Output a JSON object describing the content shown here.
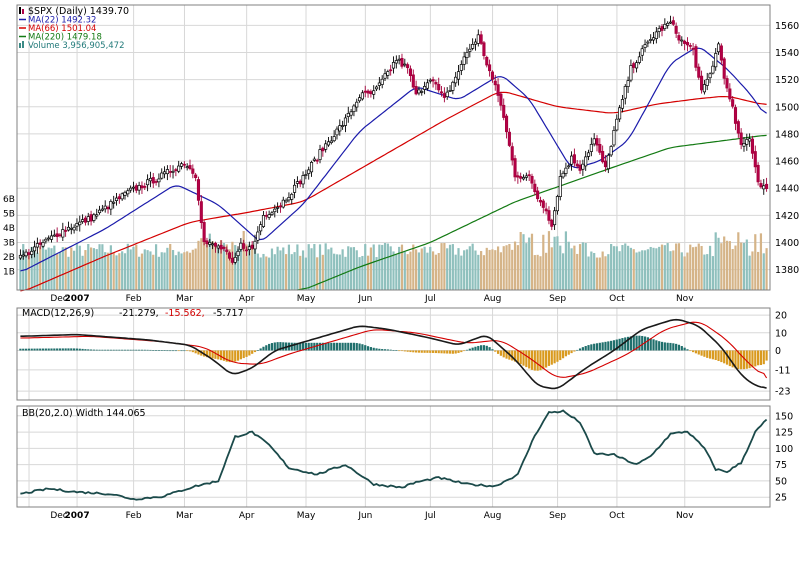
{
  "chart_data": [
    {
      "type": "line",
      "panel": "price",
      "title": "$SPX (Daily) 1439.70",
      "symbol": "$SPX",
      "period": "Daily",
      "last": 1439.7,
      "legend": [
        {
          "label": "$SPX (Daily) 1439.70",
          "color": "#000000",
          "swatch": "candle"
        },
        {
          "label": "MA(22) 1492.32",
          "color": "#1b1bab",
          "swatch": "line"
        },
        {
          "label": "MA(66) 1501.04",
          "color": "#d40000",
          "swatch": "line"
        },
        {
          "label": "MA(220) 1479.18",
          "color": "#137a13",
          "swatch": "line"
        },
        {
          "label": "Volume 3,956,905,472",
          "color": "#227a7a",
          "swatch": "bars"
        }
      ],
      "ylim": [
        1365,
        1575
      ],
      "yticks": [
        1380,
        1400,
        1420,
        1440,
        1460,
        1480,
        1500,
        1520,
        1540,
        1560
      ],
      "x_months": [
        "Dec",
        "2007",
        "Feb",
        "Mar",
        "Apr",
        "May",
        "Jun",
        "Jul",
        "Aug",
        "Sep",
        "Oct",
        "Nov"
      ],
      "volume_ticks": [
        "6B",
        "5B",
        "4B",
        "3B",
        "2B",
        "1B"
      ],
      "close_keypoints": [
        {
          "t": 0,
          "v": 1389
        },
        {
          "t": 15,
          "v": 1409
        },
        {
          "t": 25,
          "v": 1418
        },
        {
          "t": 38,
          "v": 1437
        },
        {
          "t": 50,
          "v": 1449
        },
        {
          "t": 58,
          "v": 1459
        },
        {
          "t": 62,
          "v": 1450
        },
        {
          "t": 65,
          "v": 1400
        },
        {
          "t": 72,
          "v": 1395
        },
        {
          "t": 75,
          "v": 1383
        },
        {
          "t": 78,
          "v": 1398
        },
        {
          "t": 82,
          "v": 1395
        },
        {
          "t": 86,
          "v": 1420
        },
        {
          "t": 92,
          "v": 1428
        },
        {
          "t": 100,
          "v": 1448
        },
        {
          "t": 108,
          "v": 1472
        },
        {
          "t": 115,
          "v": 1490
        },
        {
          "t": 120,
          "v": 1508
        },
        {
          "t": 125,
          "v": 1510
        },
        {
          "t": 130,
          "v": 1525
        },
        {
          "t": 133,
          "v": 1535
        },
        {
          "t": 137,
          "v": 1528
        },
        {
          "t": 140,
          "v": 1508
        },
        {
          "t": 145,
          "v": 1522
        },
        {
          "t": 150,
          "v": 1505
        },
        {
          "t": 154,
          "v": 1522
        },
        {
          "t": 158,
          "v": 1540
        },
        {
          "t": 162,
          "v": 1552
        },
        {
          "t": 165,
          "v": 1532
        },
        {
          "t": 170,
          "v": 1502
        },
        {
          "t": 175,
          "v": 1450
        },
        {
          "t": 180,
          "v": 1448
        },
        {
          "t": 183,
          "v": 1433
        },
        {
          "t": 186,
          "v": 1425
        },
        {
          "t": 188,
          "v": 1412
        },
        {
          "t": 191,
          "v": 1448
        },
        {
          "t": 195,
          "v": 1462
        },
        {
          "t": 198,
          "v": 1455
        },
        {
          "t": 203,
          "v": 1476
        },
        {
          "t": 207,
          "v": 1454
        },
        {
          "t": 210,
          "v": 1482
        },
        {
          "t": 216,
          "v": 1528
        },
        {
          "t": 220,
          "v": 1541
        },
        {
          "t": 225,
          "v": 1555
        },
        {
          "t": 230,
          "v": 1562
        },
        {
          "t": 234,
          "v": 1548
        },
        {
          "t": 238,
          "v": 1542
        },
        {
          "t": 241,
          "v": 1510
        },
        {
          "t": 244,
          "v": 1524
        },
        {
          "t": 247,
          "v": 1546
        },
        {
          "t": 250,
          "v": 1512
        },
        {
          "t": 252,
          "v": 1498
        },
        {
          "t": 255,
          "v": 1470
        },
        {
          "t": 258,
          "v": 1478
        },
        {
          "t": 261,
          "v": 1445
        },
        {
          "t": 264,
          "v": 1439.7
        }
      ],
      "ma_22_keypoints": [
        {
          "t": 0,
          "v": 1378
        },
        {
          "t": 30,
          "v": 1410
        },
        {
          "t": 55,
          "v": 1443
        },
        {
          "t": 70,
          "v": 1428
        },
        {
          "t": 85,
          "v": 1400
        },
        {
          "t": 100,
          "v": 1428
        },
        {
          "t": 120,
          "v": 1482
        },
        {
          "t": 140,
          "v": 1515
        },
        {
          "t": 155,
          "v": 1505
        },
        {
          "t": 170,
          "v": 1524
        },
        {
          "t": 180,
          "v": 1506
        },
        {
          "t": 195,
          "v": 1454
        },
        {
          "t": 205,
          "v": 1460
        },
        {
          "t": 215,
          "v": 1475
        },
        {
          "t": 230,
          "v": 1532
        },
        {
          "t": 240,
          "v": 1545
        },
        {
          "t": 250,
          "v": 1528
        },
        {
          "t": 258,
          "v": 1510
        },
        {
          "t": 264,
          "v": 1492.32
        }
      ],
      "ma_66_keypoints": [
        {
          "t": 0,
          "v": 1363
        },
        {
          "t": 30,
          "v": 1390
        },
        {
          "t": 60,
          "v": 1415
        },
        {
          "t": 80,
          "v": 1422
        },
        {
          "t": 100,
          "v": 1430
        },
        {
          "t": 125,
          "v": 1460
        },
        {
          "t": 150,
          "v": 1490
        },
        {
          "t": 170,
          "v": 1512
        },
        {
          "t": 190,
          "v": 1500
        },
        {
          "t": 210,
          "v": 1495
        },
        {
          "t": 225,
          "v": 1502
        },
        {
          "t": 240,
          "v": 1506
        },
        {
          "t": 250,
          "v": 1508
        },
        {
          "t": 264,
          "v": 1501.04
        }
      ],
      "ma_220_keypoints": [
        {
          "t": 100,
          "v": 1365
        },
        {
          "t": 120,
          "v": 1382
        },
        {
          "t": 145,
          "v": 1400
        },
        {
          "t": 175,
          "v": 1430
        },
        {
          "t": 205,
          "v": 1452
        },
        {
          "t": 230,
          "v": 1470
        },
        {
          "t": 264,
          "v": 1479.18
        }
      ]
    },
    {
      "type": "bar",
      "panel": "macd",
      "title": "MACD(12,26,9) -21.279, -15.562, -5.717",
      "legend": [
        {
          "label": "MACD(12,26,9)",
          "color": "#000000"
        },
        {
          "label": "-21.279,",
          "color": "#000000"
        },
        {
          "label": "-15.562,",
          "color": "#d40000"
        },
        {
          "label": "-5.717",
          "color": "#000000"
        }
      ],
      "macd": -21.279,
      "signal": -15.562,
      "histogram": -5.717,
      "ylim": [
        -28,
        24
      ],
      "yticks": [
        20,
        10,
        0,
        -11,
        -23
      ],
      "macd_keypoints": [
        {
          "t": 0,
          "v": 8
        },
        {
          "t": 20,
          "v": 9
        },
        {
          "t": 45,
          "v": 6
        },
        {
          "t": 60,
          "v": 3
        },
        {
          "t": 68,
          "v": -5
        },
        {
          "t": 75,
          "v": -14
        },
        {
          "t": 82,
          "v": -10
        },
        {
          "t": 90,
          "v": 0
        },
        {
          "t": 105,
          "v": 7
        },
        {
          "t": 120,
          "v": 14
        },
        {
          "t": 130,
          "v": 12
        },
        {
          "t": 145,
          "v": 7
        },
        {
          "t": 155,
          "v": 3
        },
        {
          "t": 165,
          "v": 9
        },
        {
          "t": 175,
          "v": -5
        },
        {
          "t": 183,
          "v": -20
        },
        {
          "t": 190,
          "v": -22
        },
        {
          "t": 200,
          "v": -10
        },
        {
          "t": 210,
          "v": 0
        },
        {
          "t": 220,
          "v": 12
        },
        {
          "t": 232,
          "v": 18
        },
        {
          "t": 240,
          "v": 14
        },
        {
          "t": 248,
          "v": 2
        },
        {
          "t": 255,
          "v": -14
        },
        {
          "t": 260,
          "v": -20
        },
        {
          "t": 264,
          "v": -21.279
        }
      ],
      "signal_keypoints": [
        {
          "t": 0,
          "v": 7
        },
        {
          "t": 25,
          "v": 8
        },
        {
          "t": 50,
          "v": 5
        },
        {
          "t": 65,
          "v": 2
        },
        {
          "t": 75,
          "v": -7
        },
        {
          "t": 85,
          "v": -8
        },
        {
          "t": 95,
          "v": -2
        },
        {
          "t": 110,
          "v": 5
        },
        {
          "t": 125,
          "v": 12
        },
        {
          "t": 140,
          "v": 10
        },
        {
          "t": 158,
          "v": 4
        },
        {
          "t": 170,
          "v": 6
        },
        {
          "t": 180,
          "v": -4
        },
        {
          "t": 190,
          "v": -16
        },
        {
          "t": 200,
          "v": -13
        },
        {
          "t": 215,
          "v": -2
        },
        {
          "t": 228,
          "v": 12
        },
        {
          "t": 240,
          "v": 17
        },
        {
          "t": 250,
          "v": 6
        },
        {
          "t": 258,
          "v": -8
        },
        {
          "t": 264,
          "v": -15.562
        }
      ]
    },
    {
      "type": "line",
      "panel": "bb_width",
      "title": "BB(20,2.0) Width 144.065",
      "value": 144.065,
      "color": "#1b4a4a",
      "ylim": [
        10,
        165
      ],
      "yticks": [
        150,
        125,
        100,
        75,
        50,
        25
      ],
      "x_months": [
        "Dec",
        "2007",
        "Feb",
        "Mar",
        "Apr",
        "May",
        "Jun",
        "Jul",
        "Aug",
        "Sep",
        "Oct",
        "Nov"
      ],
      "keypoints": [
        {
          "t": 0,
          "v": 30
        },
        {
          "t": 10,
          "v": 38
        },
        {
          "t": 20,
          "v": 33
        },
        {
          "t": 32,
          "v": 30
        },
        {
          "t": 40,
          "v": 22
        },
        {
          "t": 50,
          "v": 26
        },
        {
          "t": 62,
          "v": 42
        },
        {
          "t": 70,
          "v": 50
        },
        {
          "t": 76,
          "v": 118
        },
        {
          "t": 82,
          "v": 125
        },
        {
          "t": 88,
          "v": 105
        },
        {
          "t": 95,
          "v": 70
        },
        {
          "t": 105,
          "v": 60
        },
        {
          "t": 115,
          "v": 75
        },
        {
          "t": 125,
          "v": 45
        },
        {
          "t": 135,
          "v": 40
        },
        {
          "t": 140,
          "v": 48
        },
        {
          "t": 148,
          "v": 55
        },
        {
          "t": 158,
          "v": 45
        },
        {
          "t": 168,
          "v": 42
        },
        {
          "t": 176,
          "v": 60
        },
        {
          "t": 182,
          "v": 120
        },
        {
          "t": 187,
          "v": 155
        },
        {
          "t": 192,
          "v": 157
        },
        {
          "t": 198,
          "v": 140
        },
        {
          "t": 203,
          "v": 92
        },
        {
          "t": 210,
          "v": 90
        },
        {
          "t": 218,
          "v": 75
        },
        {
          "t": 223,
          "v": 88
        },
        {
          "t": 230,
          "v": 122
        },
        {
          "t": 236,
          "v": 126
        },
        {
          "t": 242,
          "v": 100
        },
        {
          "t": 246,
          "v": 68
        },
        {
          "t": 250,
          "v": 64
        },
        {
          "t": 255,
          "v": 78
        },
        {
          "t": 260,
          "v": 125
        },
        {
          "t": 264,
          "v": 144.065
        }
      ]
    }
  ]
}
